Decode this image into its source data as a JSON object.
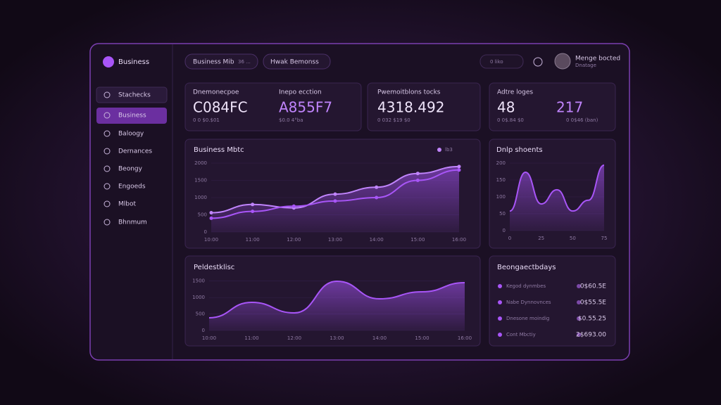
{
  "brand": "Business",
  "nav": [
    "Stachecks",
    "Business",
    "Baloogy",
    "Dernances",
    "Beongy",
    "Engoeds",
    "Mlbot",
    "Bhnmum"
  ],
  "tabs": [
    "Business Mib",
    "Hwak Bemonss"
  ],
  "tab_badge": "36 ...",
  "search": "0 liko",
  "user": {
    "name": "Menge bocted",
    "role": "Dnatage"
  },
  "stats": [
    {
      "label": "Dnemonecpoe",
      "value": "C084FC",
      "sub": "0 0 $0.$01"
    },
    {
      "label": "Inepo ecction",
      "value": "A855F7",
      "sub": "$0.0 4°ba"
    },
    {
      "label": "Pwemoitblons tocks",
      "value": "4318.492",
      "sub": "0 032 $19 $0"
    },
    {
      "label": "Adtre loges",
      "value": "48",
      "sub": "0 0$.84 $0"
    },
    {
      "label": "",
      "value": "217",
      "sub": "0 0$46 (ban)"
    }
  ],
  "chart_data": [
    {
      "type": "line",
      "title": "Business Mbtc",
      "categories": [
        "10:00",
        "11:00",
        "12:00",
        "13:00",
        "14:00",
        "15:00",
        "16:00"
      ],
      "series": [
        {
          "name": "lb3",
          "color": "#c084fc",
          "values": [
            560,
            800,
            700,
            1100,
            1300,
            1700,
            1900
          ]
        },
        {
          "color": "#a855f7",
          "values": [
            400,
            600,
            750,
            900,
            1000,
            1500,
            1800
          ]
        }
      ],
      "ylim": [
        0,
        2000
      ],
      "yticks": [
        0,
        500,
        1000,
        1500,
        2000
      ]
    },
    {
      "type": "area",
      "title": "Dnlp shoents",
      "categories": [
        "0",
        null,
        "25",
        null,
        "50",
        null,
        "75"
      ],
      "series": [
        {
          "color": "#a855f7",
          "values": [
            58,
            173,
            79,
            121,
            58,
            90,
            194
          ]
        }
      ],
      "ylim": [
        0,
        200
      ],
      "yticks": [
        0,
        50,
        100,
        150,
        200
      ]
    },
    {
      "type": "area",
      "title": "Peldestklisc",
      "categories": [
        "10:00",
        "11:00",
        "12:00",
        "13:00",
        "14:00",
        "15:00",
        "16:00"
      ],
      "series": [
        {
          "color": "#a855f7",
          "values": [
            384,
            853,
            533,
            1493,
            960,
            1173,
            1450
          ]
        }
      ],
      "ylim": [
        0,
        1600
      ],
      "yticks": [
        0,
        500,
        1000,
        1500
      ]
    }
  ],
  "activity": {
    "title": "Beongaectbdays",
    "rows": [
      {
        "label": "Kegod dynmbes",
        "value": "0$60.5E"
      },
      {
        "label": "Nabe Dynnovnces",
        "value": "0$55.5E"
      },
      {
        "label": "Dnesone moindig",
        "value": "$0.55.25"
      },
      {
        "label": "Cont Mbctiy",
        "value": "2$693.00"
      }
    ]
  }
}
